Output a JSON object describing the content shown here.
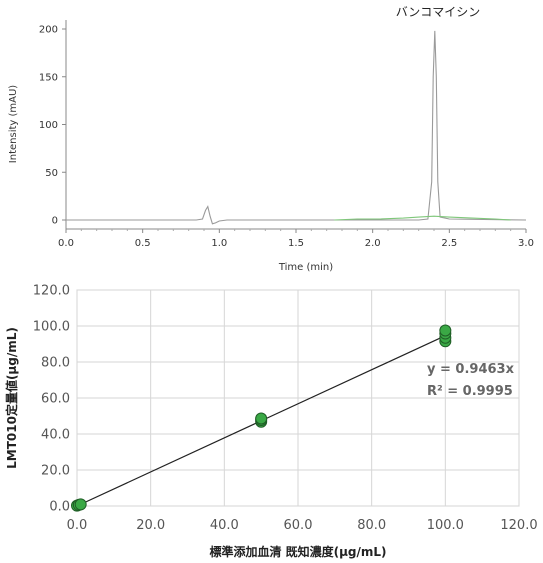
{
  "chart_data": [
    {
      "type": "line",
      "title": "",
      "xlabel": "Time (min)",
      "ylabel": "Intensity (mAU)",
      "xlim": [
        0,
        3.0
      ],
      "ylim": [
        0,
        200
      ],
      "x_ticks": [
        "0.0",
        "0.5",
        "1.0",
        "1.5",
        "2.0",
        "2.5",
        "3.0"
      ],
      "y_ticks": [
        "0",
        "50",
        "100",
        "150",
        "200"
      ],
      "annotations": [
        {
          "text": "バンコマイシン",
          "x": 2.4,
          "y": 200
        }
      ],
      "series": [
        {
          "color": "#9a9a9a",
          "points": [
            [
              0.0,
              0
            ],
            [
              0.85,
              0
            ],
            [
              0.89,
              1
            ],
            [
              0.91,
              10
            ],
            [
              0.925,
              14
            ],
            [
              0.94,
              4
            ],
            [
              0.955,
              -4
            ],
            [
              0.975,
              -3
            ],
            [
              1.0,
              -1
            ],
            [
              1.05,
              0
            ],
            [
              2.3,
              0
            ],
            [
              2.36,
              1
            ],
            [
              2.385,
              40
            ],
            [
              2.395,
              150
            ],
            [
              2.405,
              198
            ],
            [
              2.415,
              150
            ],
            [
              2.425,
              40
            ],
            [
              2.44,
              3
            ],
            [
              2.5,
              1
            ],
            [
              3.0,
              0
            ]
          ]
        },
        {
          "color": "#7fc77a",
          "points": [
            [
              1.75,
              0
            ],
            [
              1.9,
              1
            ],
            [
              2.05,
              1
            ],
            [
              2.2,
              2
            ],
            [
              2.3,
              3
            ],
            [
              2.4,
              4
            ],
            [
              2.5,
              3
            ],
            [
              2.65,
              2
            ],
            [
              2.8,
              1
            ],
            [
              2.9,
              0
            ]
          ]
        }
      ]
    },
    {
      "type": "scatter",
      "title": "",
      "xlabel": "標準添加血清 既知濃度(μg/mL)",
      "ylabel": "LMT010定量値(μg/mL)",
      "xlim": [
        0,
        120
      ],
      "ylim": [
        0,
        120
      ],
      "x_ticks": [
        "0.0",
        "20.0",
        "40.0",
        "60.0",
        "80.0",
        "100.0",
        "120.0"
      ],
      "y_ticks": [
        "0.0",
        "20.0",
        "40.0",
        "60.0",
        "80.0",
        "100.0",
        "120.0"
      ],
      "grid": true,
      "marker_color": "#3aa845",
      "points": [
        [
          0,
          0.2
        ],
        [
          0.5,
          0.6
        ],
        [
          1,
          0.9
        ],
        [
          50,
          46.8
        ],
        [
          50,
          47.8
        ],
        [
          50,
          48.6
        ],
        [
          100,
          91.5
        ],
        [
          100,
          93.5
        ],
        [
          100,
          95.8
        ],
        [
          100,
          97.5
        ]
      ],
      "trendline": {
        "slope": 0.9463,
        "x": [
          0,
          100
        ]
      },
      "equation": "y = 0.9463x",
      "r2": "R² = 0.9995"
    }
  ]
}
